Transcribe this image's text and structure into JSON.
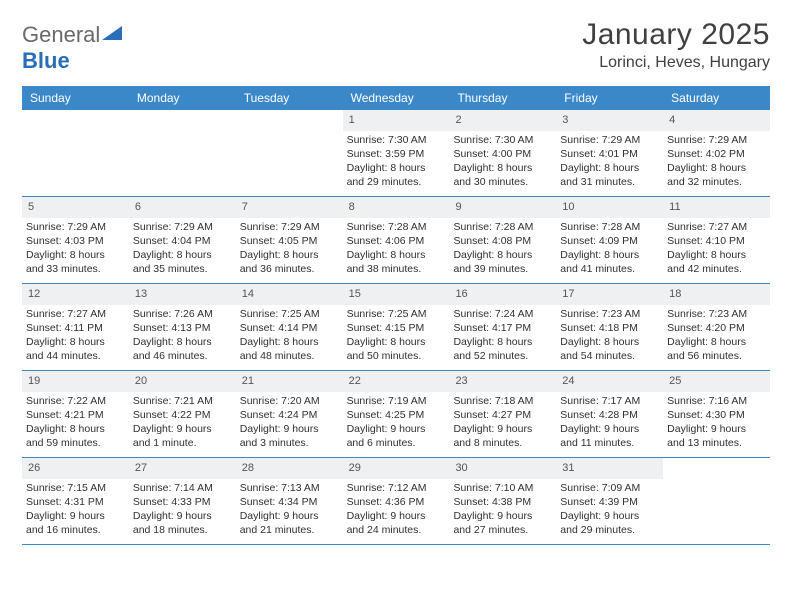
{
  "logo": {
    "text1": "General",
    "text2": "Blue"
  },
  "title": "January 2025",
  "location": "Lorinci, Heves, Hungary",
  "colors": {
    "header_bg": "#3b88c9",
    "header_text": "#ffffff",
    "daynum_bg": "#eef0f2",
    "border": "#3b88c9",
    "body_text": "#303030",
    "title_text": "#404040",
    "logo_gray": "#6a6a6a",
    "logo_blue": "#2a6db8"
  },
  "weekdays": [
    "Sunday",
    "Monday",
    "Tuesday",
    "Wednesday",
    "Thursday",
    "Friday",
    "Saturday"
  ],
  "weeks": [
    [
      {
        "empty": true
      },
      {
        "empty": true
      },
      {
        "empty": true
      },
      {
        "n": "1",
        "sr": "Sunrise: 7:30 AM",
        "ss": "Sunset: 3:59 PM",
        "d1": "Daylight: 8 hours",
        "d2": "and 29 minutes."
      },
      {
        "n": "2",
        "sr": "Sunrise: 7:30 AM",
        "ss": "Sunset: 4:00 PM",
        "d1": "Daylight: 8 hours",
        "d2": "and 30 minutes."
      },
      {
        "n": "3",
        "sr": "Sunrise: 7:29 AM",
        "ss": "Sunset: 4:01 PM",
        "d1": "Daylight: 8 hours",
        "d2": "and 31 minutes."
      },
      {
        "n": "4",
        "sr": "Sunrise: 7:29 AM",
        "ss": "Sunset: 4:02 PM",
        "d1": "Daylight: 8 hours",
        "d2": "and 32 minutes."
      }
    ],
    [
      {
        "n": "5",
        "sr": "Sunrise: 7:29 AM",
        "ss": "Sunset: 4:03 PM",
        "d1": "Daylight: 8 hours",
        "d2": "and 33 minutes."
      },
      {
        "n": "6",
        "sr": "Sunrise: 7:29 AM",
        "ss": "Sunset: 4:04 PM",
        "d1": "Daylight: 8 hours",
        "d2": "and 35 minutes."
      },
      {
        "n": "7",
        "sr": "Sunrise: 7:29 AM",
        "ss": "Sunset: 4:05 PM",
        "d1": "Daylight: 8 hours",
        "d2": "and 36 minutes."
      },
      {
        "n": "8",
        "sr": "Sunrise: 7:28 AM",
        "ss": "Sunset: 4:06 PM",
        "d1": "Daylight: 8 hours",
        "d2": "and 38 minutes."
      },
      {
        "n": "9",
        "sr": "Sunrise: 7:28 AM",
        "ss": "Sunset: 4:08 PM",
        "d1": "Daylight: 8 hours",
        "d2": "and 39 minutes."
      },
      {
        "n": "10",
        "sr": "Sunrise: 7:28 AM",
        "ss": "Sunset: 4:09 PM",
        "d1": "Daylight: 8 hours",
        "d2": "and 41 minutes."
      },
      {
        "n": "11",
        "sr": "Sunrise: 7:27 AM",
        "ss": "Sunset: 4:10 PM",
        "d1": "Daylight: 8 hours",
        "d2": "and 42 minutes."
      }
    ],
    [
      {
        "n": "12",
        "sr": "Sunrise: 7:27 AM",
        "ss": "Sunset: 4:11 PM",
        "d1": "Daylight: 8 hours",
        "d2": "and 44 minutes."
      },
      {
        "n": "13",
        "sr": "Sunrise: 7:26 AM",
        "ss": "Sunset: 4:13 PM",
        "d1": "Daylight: 8 hours",
        "d2": "and 46 minutes."
      },
      {
        "n": "14",
        "sr": "Sunrise: 7:25 AM",
        "ss": "Sunset: 4:14 PM",
        "d1": "Daylight: 8 hours",
        "d2": "and 48 minutes."
      },
      {
        "n": "15",
        "sr": "Sunrise: 7:25 AM",
        "ss": "Sunset: 4:15 PM",
        "d1": "Daylight: 8 hours",
        "d2": "and 50 minutes."
      },
      {
        "n": "16",
        "sr": "Sunrise: 7:24 AM",
        "ss": "Sunset: 4:17 PM",
        "d1": "Daylight: 8 hours",
        "d2": "and 52 minutes."
      },
      {
        "n": "17",
        "sr": "Sunrise: 7:23 AM",
        "ss": "Sunset: 4:18 PM",
        "d1": "Daylight: 8 hours",
        "d2": "and 54 minutes."
      },
      {
        "n": "18",
        "sr": "Sunrise: 7:23 AM",
        "ss": "Sunset: 4:20 PM",
        "d1": "Daylight: 8 hours",
        "d2": "and 56 minutes."
      }
    ],
    [
      {
        "n": "19",
        "sr": "Sunrise: 7:22 AM",
        "ss": "Sunset: 4:21 PM",
        "d1": "Daylight: 8 hours",
        "d2": "and 59 minutes."
      },
      {
        "n": "20",
        "sr": "Sunrise: 7:21 AM",
        "ss": "Sunset: 4:22 PM",
        "d1": "Daylight: 9 hours",
        "d2": "and 1 minute."
      },
      {
        "n": "21",
        "sr": "Sunrise: 7:20 AM",
        "ss": "Sunset: 4:24 PM",
        "d1": "Daylight: 9 hours",
        "d2": "and 3 minutes."
      },
      {
        "n": "22",
        "sr": "Sunrise: 7:19 AM",
        "ss": "Sunset: 4:25 PM",
        "d1": "Daylight: 9 hours",
        "d2": "and 6 minutes."
      },
      {
        "n": "23",
        "sr": "Sunrise: 7:18 AM",
        "ss": "Sunset: 4:27 PM",
        "d1": "Daylight: 9 hours",
        "d2": "and 8 minutes."
      },
      {
        "n": "24",
        "sr": "Sunrise: 7:17 AM",
        "ss": "Sunset: 4:28 PM",
        "d1": "Daylight: 9 hours",
        "d2": "and 11 minutes."
      },
      {
        "n": "25",
        "sr": "Sunrise: 7:16 AM",
        "ss": "Sunset: 4:30 PM",
        "d1": "Daylight: 9 hours",
        "d2": "and 13 minutes."
      }
    ],
    [
      {
        "n": "26",
        "sr": "Sunrise: 7:15 AM",
        "ss": "Sunset: 4:31 PM",
        "d1": "Daylight: 9 hours",
        "d2": "and 16 minutes."
      },
      {
        "n": "27",
        "sr": "Sunrise: 7:14 AM",
        "ss": "Sunset: 4:33 PM",
        "d1": "Daylight: 9 hours",
        "d2": "and 18 minutes."
      },
      {
        "n": "28",
        "sr": "Sunrise: 7:13 AM",
        "ss": "Sunset: 4:34 PM",
        "d1": "Daylight: 9 hours",
        "d2": "and 21 minutes."
      },
      {
        "n": "29",
        "sr": "Sunrise: 7:12 AM",
        "ss": "Sunset: 4:36 PM",
        "d1": "Daylight: 9 hours",
        "d2": "and 24 minutes."
      },
      {
        "n": "30",
        "sr": "Sunrise: 7:10 AM",
        "ss": "Sunset: 4:38 PM",
        "d1": "Daylight: 9 hours",
        "d2": "and 27 minutes."
      },
      {
        "n": "31",
        "sr": "Sunrise: 7:09 AM",
        "ss": "Sunset: 4:39 PM",
        "d1": "Daylight: 9 hours",
        "d2": "and 29 minutes."
      },
      {
        "empty": true
      }
    ]
  ]
}
